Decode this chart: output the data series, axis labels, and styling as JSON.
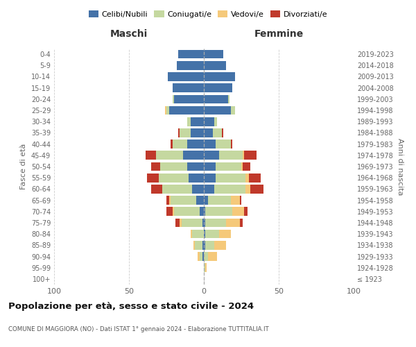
{
  "age_groups": [
    "0-4",
    "5-9",
    "10-14",
    "15-19",
    "20-24",
    "25-29",
    "30-34",
    "35-39",
    "40-44",
    "45-49",
    "50-54",
    "55-59",
    "60-64",
    "65-69",
    "70-74",
    "75-79",
    "80-84",
    "85-89",
    "90-94",
    "95-99",
    "100+"
  ],
  "birth_years": [
    "2019-2023",
    "2014-2018",
    "2009-2013",
    "2004-2008",
    "1999-2003",
    "1994-1998",
    "1989-1993",
    "1984-1988",
    "1979-1983",
    "1974-1978",
    "1969-1973",
    "1964-1968",
    "1959-1963",
    "1954-1958",
    "1949-1953",
    "1944-1948",
    "1939-1943",
    "1934-1938",
    "1929-1933",
    "1924-1928",
    "≤ 1923"
  ],
  "maschi": {
    "celibi": [
      17,
      18,
      24,
      21,
      20,
      23,
      9,
      9,
      11,
      14,
      11,
      10,
      8,
      5,
      3,
      1,
      0,
      1,
      1,
      0,
      0
    ],
    "coniugati": [
      0,
      0,
      0,
      0,
      1,
      2,
      2,
      7,
      10,
      18,
      18,
      20,
      20,
      17,
      17,
      14,
      8,
      5,
      2,
      0,
      0
    ],
    "vedovi": [
      0,
      0,
      0,
      0,
      0,
      1,
      0,
      0,
      0,
      0,
      0,
      0,
      0,
      1,
      1,
      1,
      1,
      1,
      1,
      0,
      0
    ],
    "divorziati": [
      0,
      0,
      0,
      0,
      0,
      0,
      0,
      1,
      1,
      7,
      6,
      8,
      7,
      2,
      4,
      3,
      0,
      0,
      0,
      0,
      0
    ]
  },
  "femmine": {
    "nubili": [
      13,
      15,
      21,
      19,
      16,
      18,
      7,
      6,
      8,
      10,
      8,
      8,
      7,
      3,
      1,
      1,
      1,
      1,
      0,
      0,
      0
    ],
    "coniugate": [
      0,
      0,
      0,
      0,
      1,
      3,
      2,
      6,
      10,
      16,
      17,
      20,
      21,
      15,
      18,
      14,
      9,
      6,
      3,
      1,
      0
    ],
    "vedove": [
      0,
      0,
      0,
      0,
      0,
      0,
      0,
      0,
      0,
      1,
      1,
      2,
      3,
      6,
      8,
      9,
      8,
      8,
      6,
      1,
      0
    ],
    "divorziate": [
      0,
      0,
      0,
      0,
      0,
      0,
      0,
      1,
      1,
      8,
      5,
      8,
      9,
      1,
      2,
      2,
      0,
      0,
      0,
      0,
      0
    ]
  },
  "colors": {
    "celibi": "#4472a8",
    "coniugati": "#c5d8a0",
    "vedovi": "#f5c97a",
    "divorziati": "#c0392b"
  },
  "title": "Popolazione per età, sesso e stato civile - 2024",
  "subtitle": "COMUNE DI MAGGIORA (NO) - Dati ISTAT 1° gennaio 2024 - Elaborazione TUTTITALIA.IT",
  "xlabel_left": "Maschi",
  "xlabel_right": "Femmine",
  "ylabel_left": "Fasce di età",
  "ylabel_right": "Anni di nascita",
  "xlim": 100,
  "legend_labels": [
    "Celibi/Nubili",
    "Coniugati/e",
    "Vedovi/e",
    "Divorziati/e"
  ]
}
